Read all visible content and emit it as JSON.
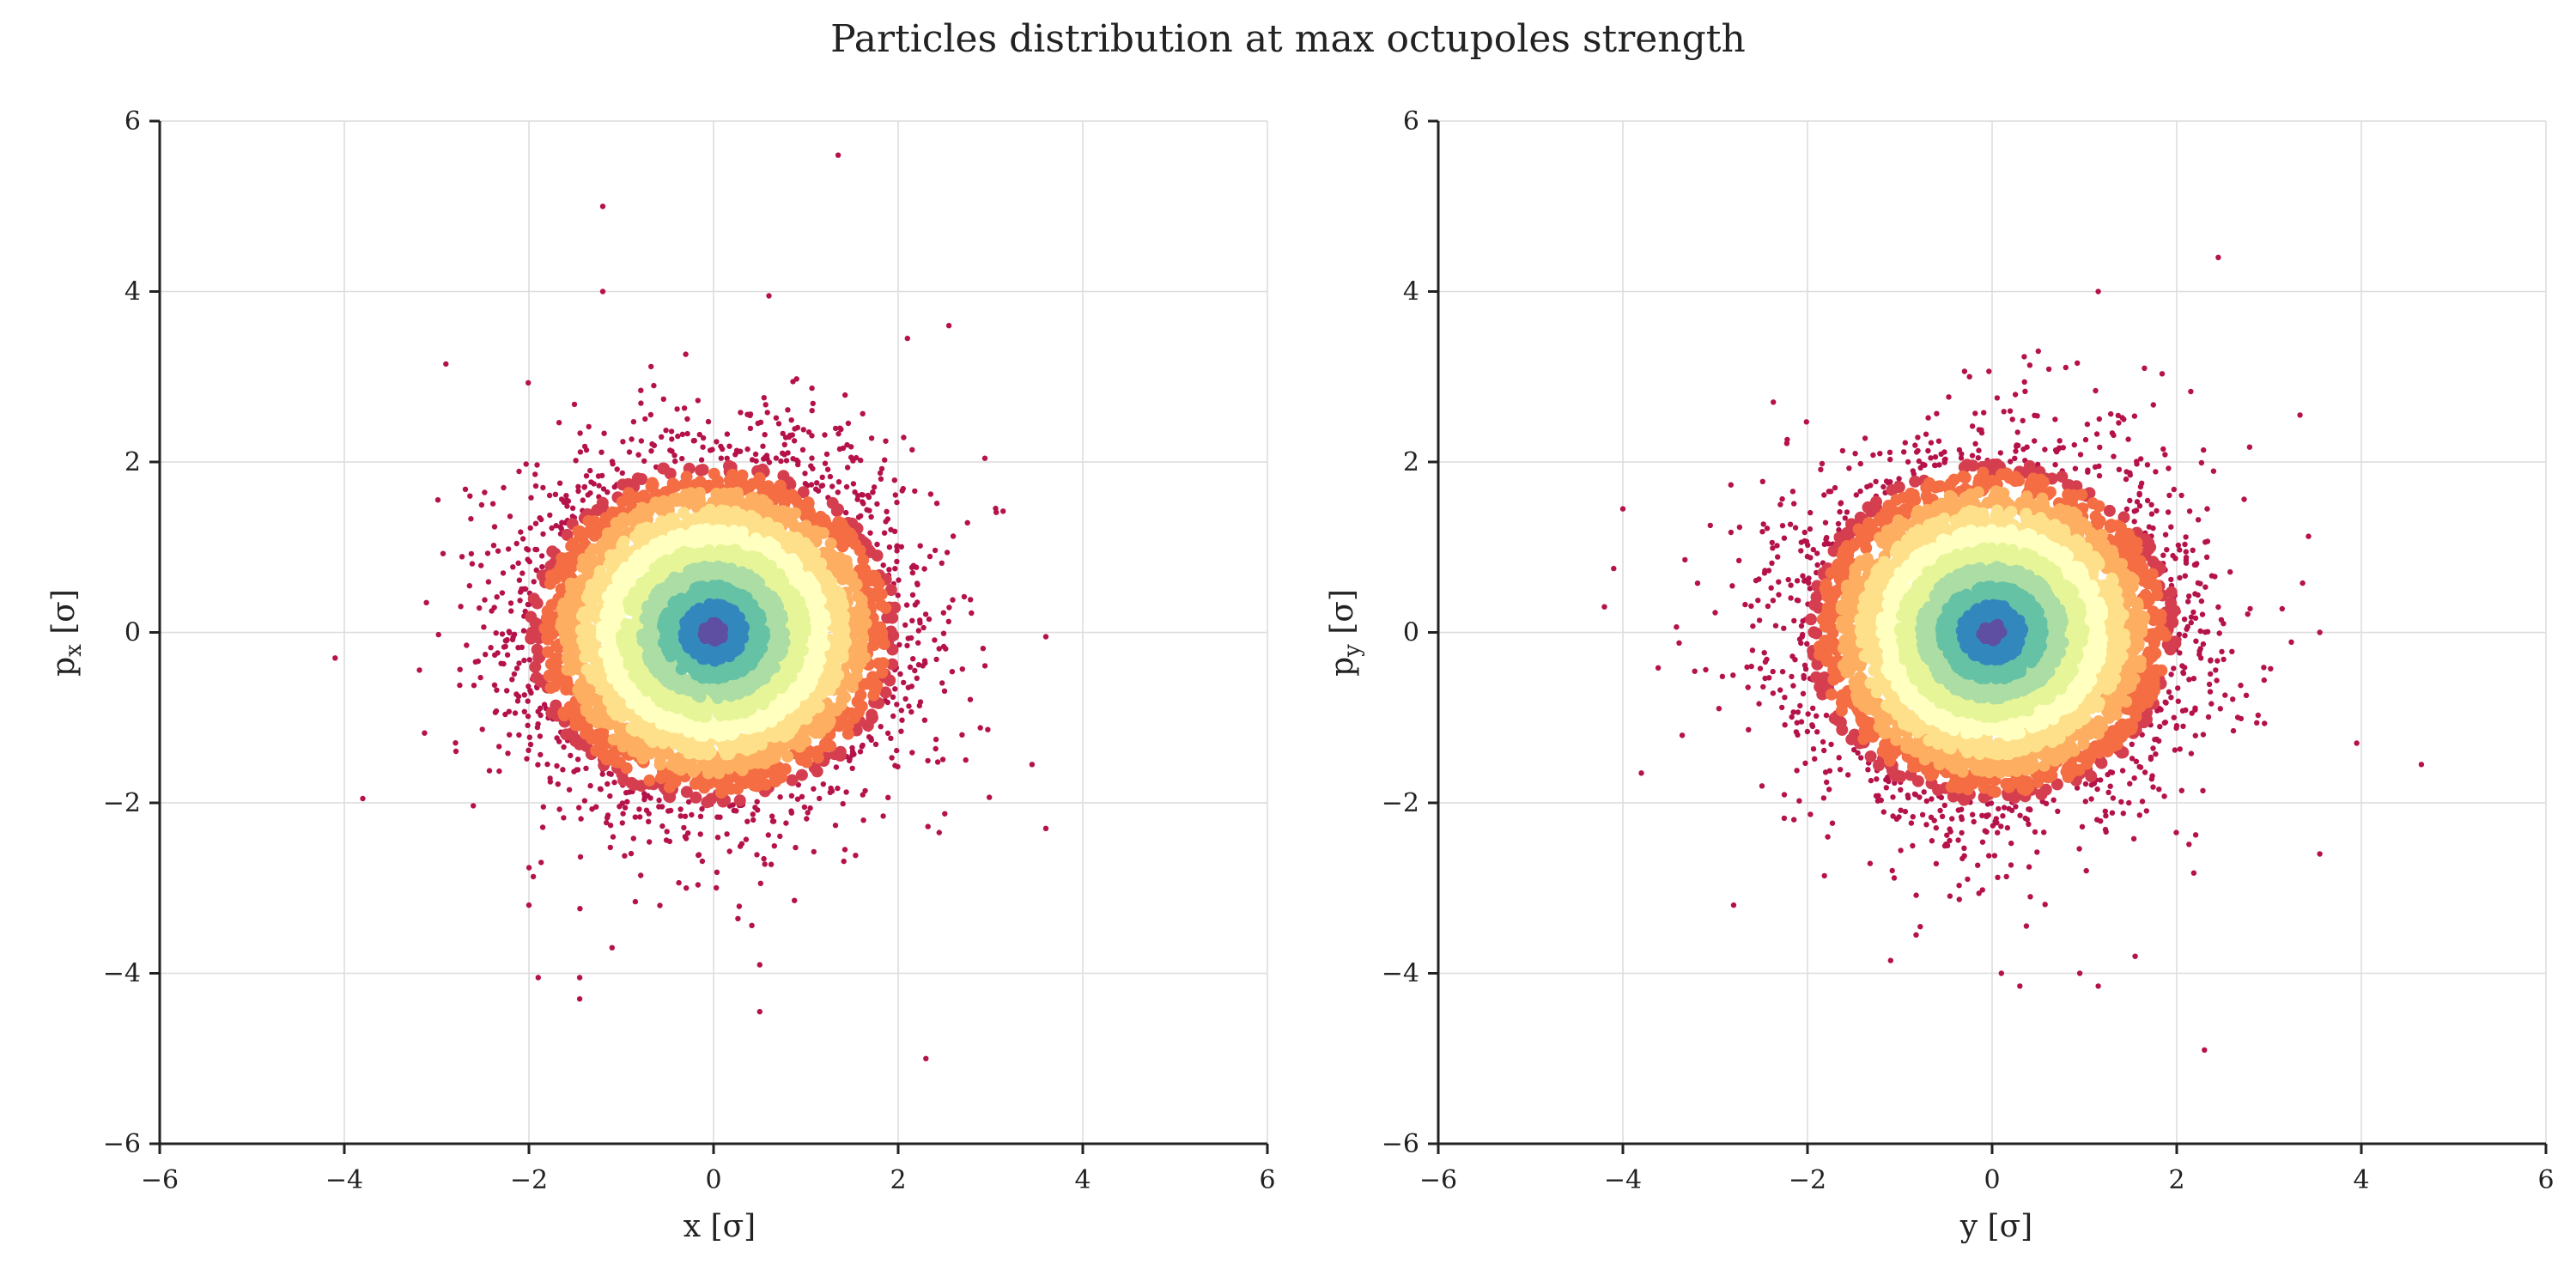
{
  "figure": {
    "title": "Particles distribution at max octupoles strength"
  },
  "colors": {
    "outer": "#b5124a",
    "ring": [
      "#d53e4f",
      "#f46d43",
      "#fdae61",
      "#fee08b",
      "#ffffbf",
      "#e6f598",
      "#abdda4",
      "#66c2a5",
      "#3288bd",
      "#5e4fa2"
    ],
    "grid": "#dcdcdc",
    "axis": "#222222"
  },
  "chart_data": [
    {
      "type": "scatter",
      "colormap": "Spectral (point density)",
      "xlabel": "x [σ]",
      "ylabel_main": "p",
      "ylabel_sub": "x",
      "ylabel_rest": " [σ]",
      "xlim": [
        -6,
        6
      ],
      "ylim": [
        -6,
        6
      ],
      "xticks": [
        "−6",
        "−4",
        "−2",
        "0",
        "2",
        "4",
        "6"
      ],
      "yticks": [
        "−6",
        "−4",
        "−2",
        "0",
        "2",
        "4",
        "6"
      ],
      "tick_values": [
        -6,
        -4,
        -2,
        0,
        2,
        4,
        6
      ],
      "grid": true,
      "distribution": {
        "center": [
          0.0,
          0.0
        ],
        "sigma_x": 1.0,
        "sigma_y": 1.0,
        "core": "dense round core"
      },
      "outliers": [
        [
          1.35,
          5.6
        ],
        [
          -1.2,
          5.0
        ],
        [
          -1.2,
          4.0
        ],
        [
          0.6,
          3.95
        ],
        [
          2.55,
          3.6
        ],
        [
          -2.9,
          3.15
        ],
        [
          2.1,
          3.45
        ],
        [
          -4.1,
          -0.3
        ],
        [
          -3.8,
          -1.95
        ],
        [
          3.6,
          -0.05
        ],
        [
          3.6,
          -2.3
        ],
        [
          3.45,
          -1.55
        ],
        [
          -1.9,
          -4.05
        ],
        [
          -1.45,
          -4.05
        ],
        [
          -1.45,
          -4.3
        ],
        [
          0.5,
          -4.45
        ],
        [
          2.3,
          -5.0
        ],
        [
          -1.1,
          -3.7
        ],
        [
          0.5,
          -3.9
        ],
        [
          -2.0,
          -3.2
        ]
      ]
    },
    {
      "type": "scatter",
      "colormap": "Spectral (point density)",
      "xlabel": "y [σ]",
      "ylabel_main": "p",
      "ylabel_sub": "y",
      "ylabel_rest": " [σ]",
      "xlim": [
        -6,
        6
      ],
      "ylim": [
        -6,
        6
      ],
      "xticks": [
        "−6",
        "−4",
        "−2",
        "0",
        "2",
        "4",
        "6"
      ],
      "yticks": [
        "−6",
        "−4",
        "−2",
        "0",
        "2",
        "4",
        "6"
      ],
      "tick_values": [
        -6,
        -4,
        -2,
        0,
        2,
        4,
        6
      ],
      "grid": true,
      "distribution": {
        "center": [
          0.0,
          0.0
        ],
        "sigma_x": 1.0,
        "sigma_y": 1.0,
        "core": "dense round core"
      },
      "outliers": [
        [
          2.45,
          4.4
        ],
        [
          1.15,
          4.0
        ],
        [
          0.5,
          3.3
        ],
        [
          1.65,
          3.1
        ],
        [
          -4.0,
          1.45
        ],
        [
          -4.2,
          0.3
        ],
        [
          -4.1,
          0.75
        ],
        [
          -3.8,
          -1.65
        ],
        [
          3.95,
          -1.3
        ],
        [
          4.65,
          -1.55
        ],
        [
          3.55,
          -2.6
        ],
        [
          3.55,
          0.0
        ],
        [
          2.3,
          -4.9
        ],
        [
          1.15,
          -4.15
        ],
        [
          0.95,
          -4.0
        ],
        [
          0.3,
          -4.15
        ],
        [
          0.1,
          -4.0
        ],
        [
          -1.1,
          -3.85
        ],
        [
          -2.8,
          -3.2
        ],
        [
          1.55,
          -3.8
        ]
      ]
    }
  ]
}
